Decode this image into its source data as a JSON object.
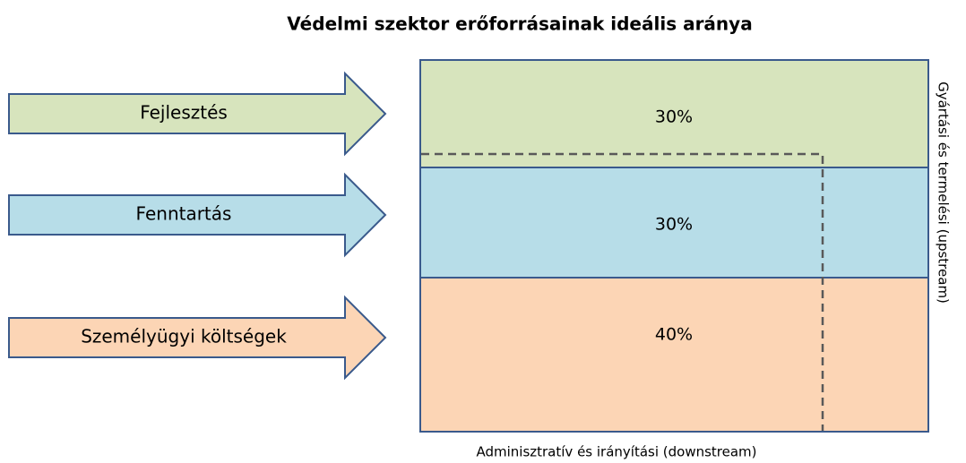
{
  "title": "Védelmi szektor erőforrásainak ideális aránya",
  "arrows": [
    {
      "label": "Fejlesztés",
      "color": "#d7e4bd"
    },
    {
      "label": "Fenntartás",
      "color": "#b7dde8"
    },
    {
      "label": "Személyügyi költségek",
      "color": "#fcd5b5"
    }
  ],
  "segments": [
    {
      "label": "30%",
      "color": "#d7e4bd"
    },
    {
      "label": "30%",
      "color": "#b7dde8"
    },
    {
      "label": "40%",
      "color": "#fcd5b5"
    }
  ],
  "right_label": "Gyártási és termelési  (upstream)",
  "bottom_label": "Adminisztratív és irányítási (downstream)"
}
